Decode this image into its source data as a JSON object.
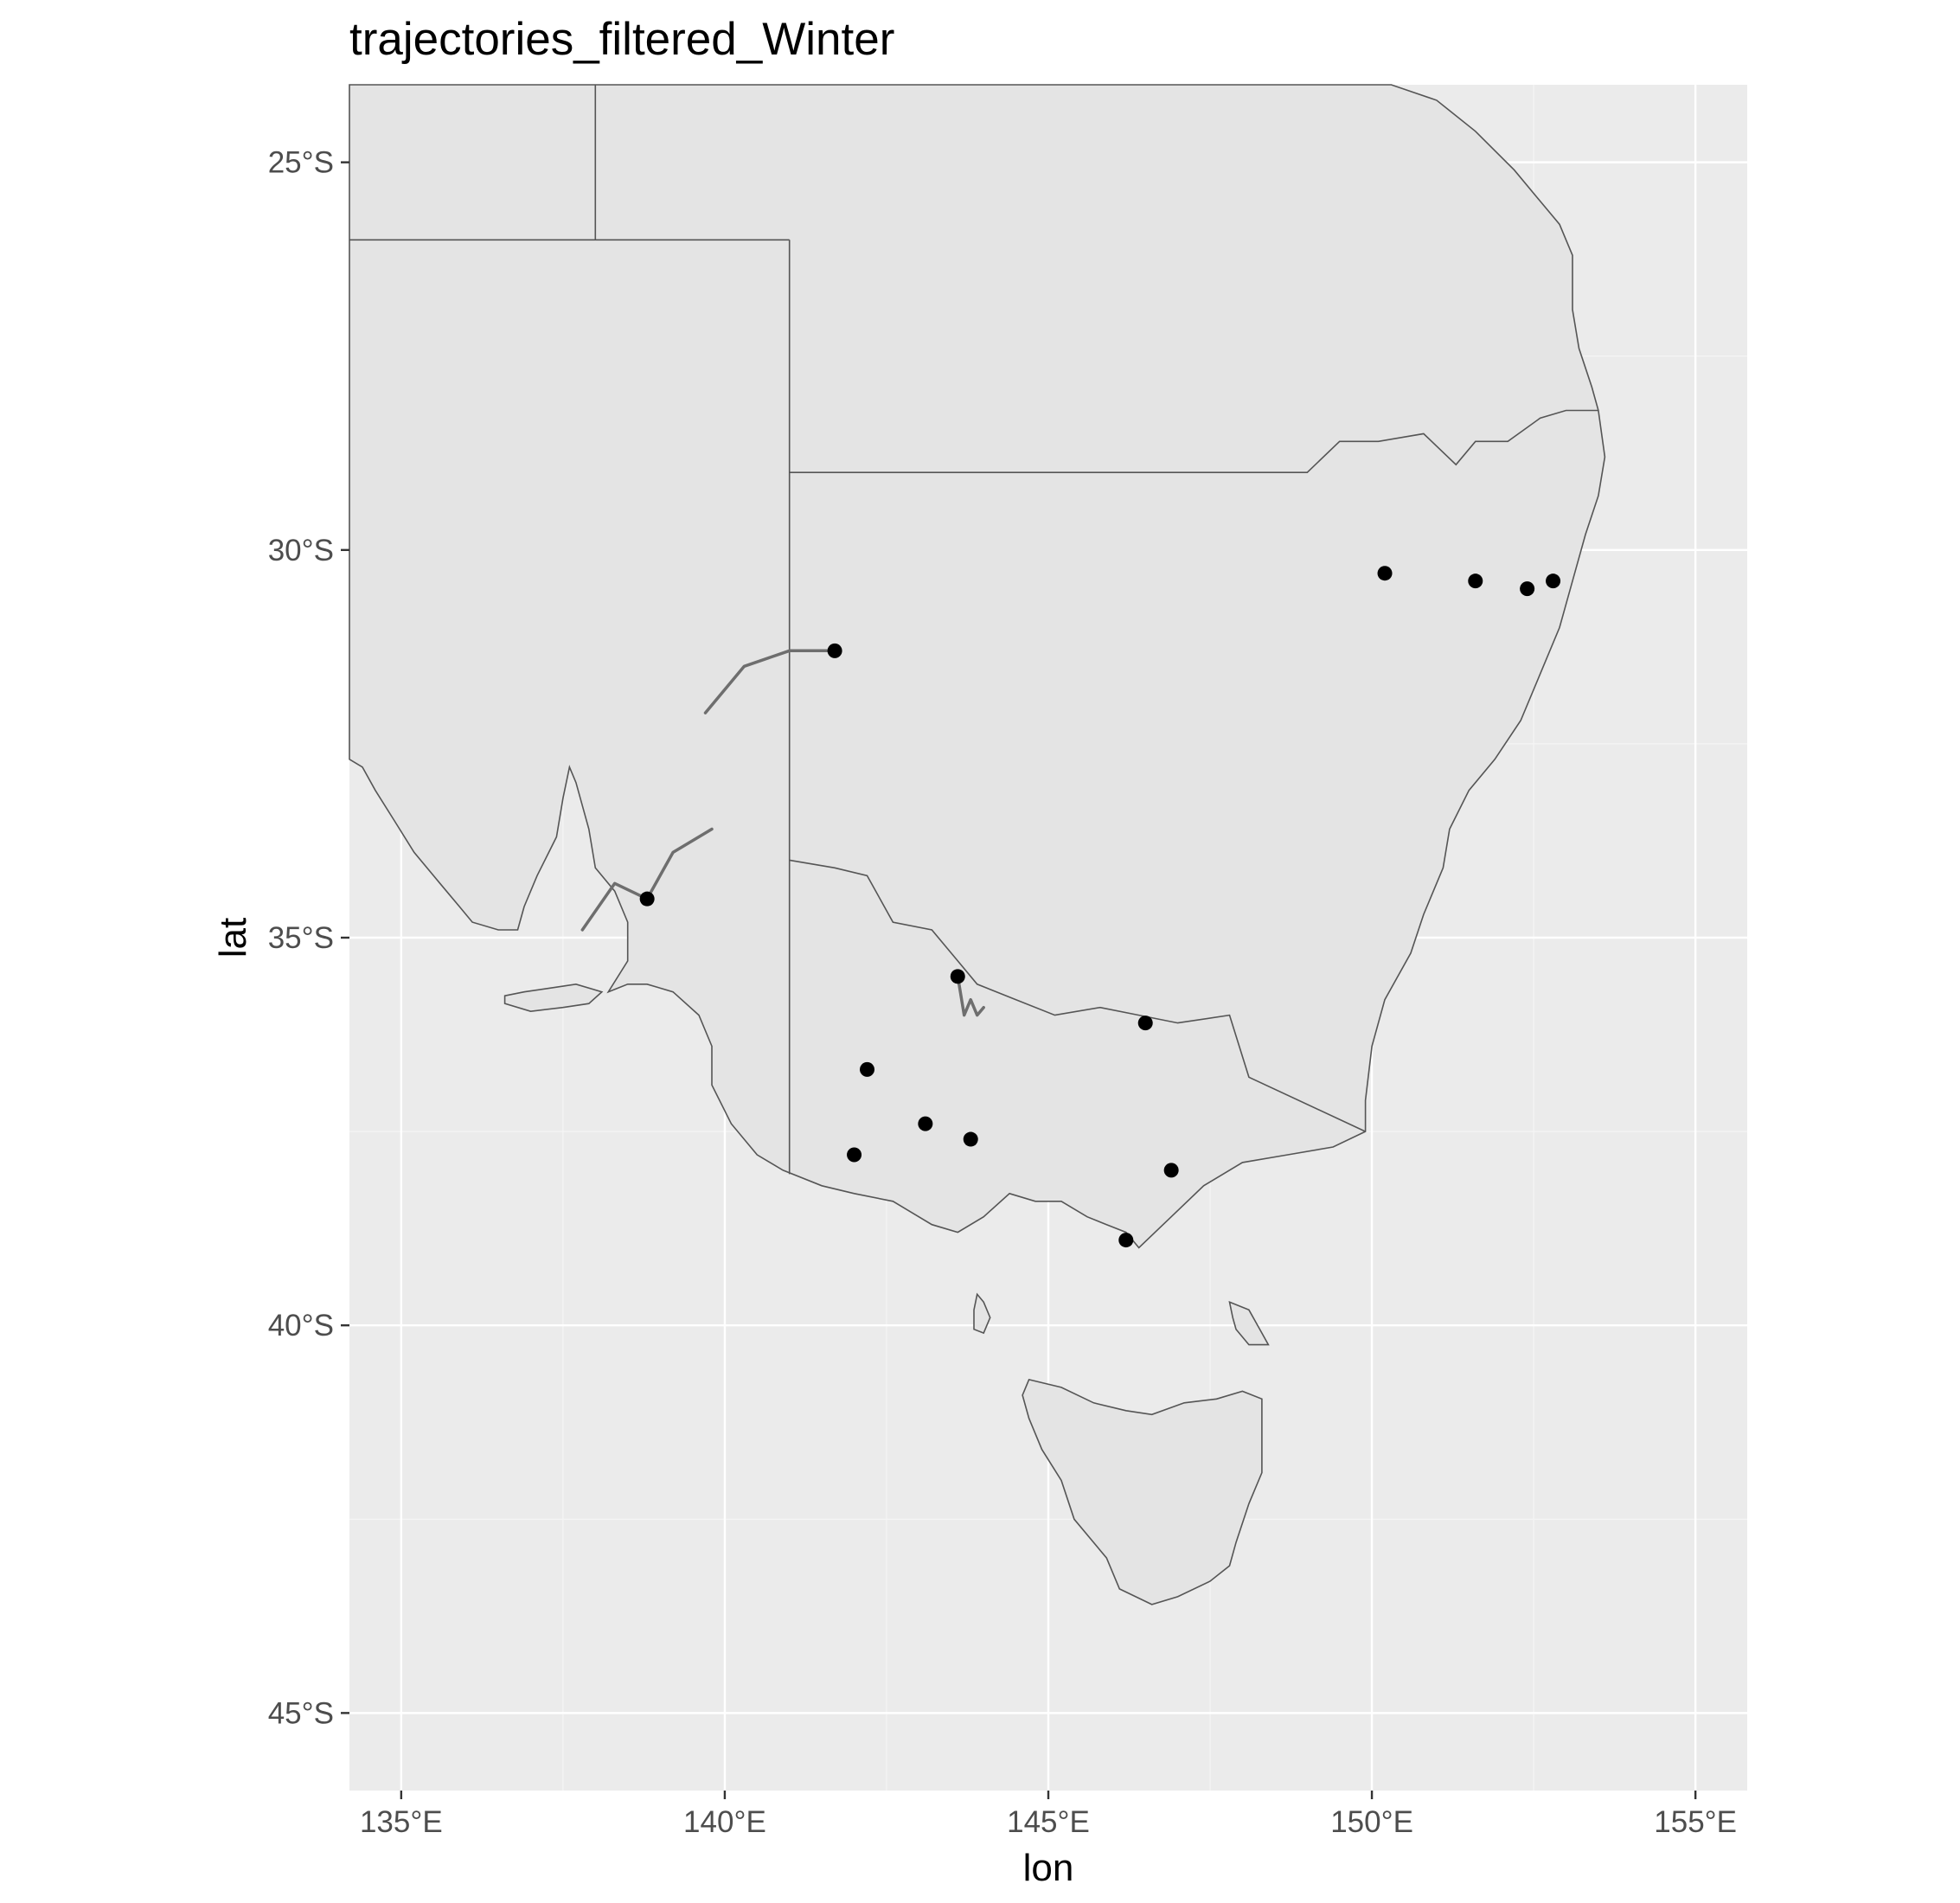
{
  "chart_data": {
    "type": "scatter",
    "title": "trajectories_filtered_Winter",
    "xlabel": "lon",
    "ylabel": "lat",
    "xlim": [
      134.2,
      155.8
    ],
    "ylim": [
      -46.0,
      -24.0
    ],
    "x_ticks": [
      {
        "value": 135,
        "label": "135°E"
      },
      {
        "value": 140,
        "label": "140°E"
      },
      {
        "value": 145,
        "label": "145°E"
      },
      {
        "value": 150,
        "label": "150°E"
      },
      {
        "value": 155,
        "label": "155°E"
      }
    ],
    "y_ticks": [
      {
        "value": -25,
        "label": "25°S"
      },
      {
        "value": -30,
        "label": "30°S"
      },
      {
        "value": -35,
        "label": "35°S"
      },
      {
        "value": -40,
        "label": "40°S"
      },
      {
        "value": -45,
        "label": "45°S"
      }
    ],
    "grid": true,
    "colors": {
      "panel_background": "#ebebeb",
      "land_fill": "#e4e4e4",
      "border_line": "#555555",
      "gridline": "#ffffff",
      "point": "#000000",
      "trajectory": "#6e6e6e"
    },
    "points": [
      {
        "lon": 141.7,
        "lat": -31.3
      },
      {
        "lon": 150.2,
        "lat": -30.3
      },
      {
        "lon": 151.6,
        "lat": -30.4
      },
      {
        "lon": 152.4,
        "lat": -30.5
      },
      {
        "lon": 152.8,
        "lat": -30.4
      },
      {
        "lon": 138.8,
        "lat": -34.5
      },
      {
        "lon": 143.6,
        "lat": -35.5
      },
      {
        "lon": 146.5,
        "lat": -36.1
      },
      {
        "lon": 142.2,
        "lat": -36.7
      },
      {
        "lon": 143.1,
        "lat": -37.4
      },
      {
        "lon": 143.8,
        "lat": -37.6
      },
      {
        "lon": 142.0,
        "lat": -37.8
      },
      {
        "lon": 146.9,
        "lat": -38.0
      },
      {
        "lon": 146.2,
        "lat": -38.9
      }
    ],
    "trajectories": [
      [
        [
          141.7,
          -31.3
        ],
        [
          141.0,
          -31.3
        ],
        [
          140.3,
          -31.5
        ],
        [
          139.7,
          -32.1
        ]
      ],
      [
        [
          138.8,
          -34.5
        ],
        [
          139.2,
          -33.9
        ],
        [
          139.8,
          -33.6
        ]
      ],
      [
        [
          138.8,
          -34.5
        ],
        [
          138.3,
          -34.3
        ],
        [
          137.8,
          -34.9
        ]
      ],
      [
        [
          143.6,
          -35.5
        ],
        [
          143.7,
          -36.0
        ],
        [
          143.8,
          -35.8
        ],
        [
          143.9,
          -36.0
        ],
        [
          144.0,
          -35.9
        ]
      ]
    ]
  }
}
